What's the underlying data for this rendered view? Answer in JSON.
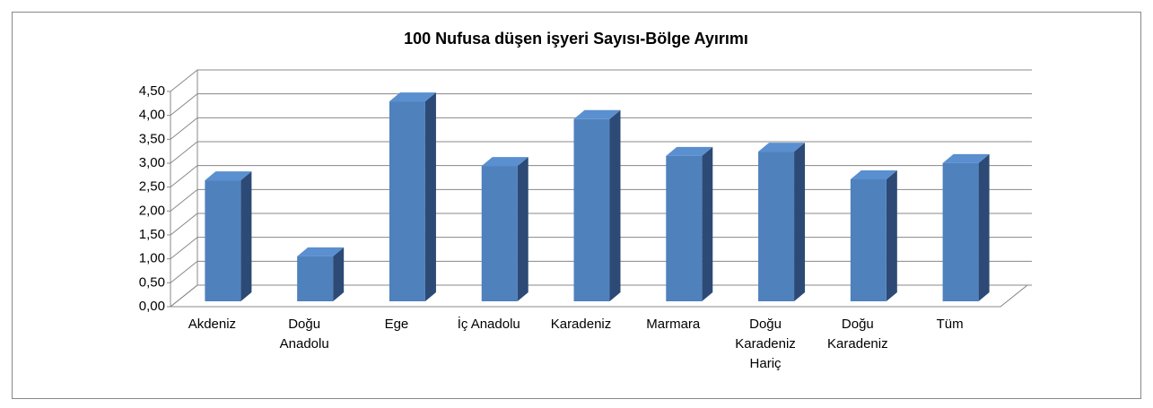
{
  "chart_data": {
    "type": "bar3d",
    "title": "100 Nufusa düşen işyeri Sayısı-Bölge Ayırımı",
    "categories": [
      "Akdeniz",
      "Doğu Anadolu",
      "Ege",
      "İç Anadolu",
      "Karadeniz",
      "Marmara",
      "Doğu Karadeniz Hariç",
      "Doğu Karadeniz",
      "Tüm"
    ],
    "values": [
      2.53,
      0.94,
      4.18,
      2.83,
      3.81,
      3.04,
      3.13,
      2.55,
      2.89
    ],
    "color": "#4f81bd",
    "ylim": [
      0,
      4.5
    ],
    "yticks": [
      {
        "value": 0,
        "label": "0,00"
      },
      {
        "value": 0.5,
        "label": "0,50"
      },
      {
        "value": 1,
        "label": "1,00"
      },
      {
        "value": 1.5,
        "label": "1,50"
      },
      {
        "value": 2,
        "label": "2,00"
      },
      {
        "value": 2.5,
        "label": "2,50"
      },
      {
        "value": 3,
        "label": "3,00"
      },
      {
        "value": 3.5,
        "label": "3,50"
      },
      {
        "value": 4,
        "label": "4,00"
      },
      {
        "value": 4.5,
        "label": "4,50"
      }
    ],
    "grid": true
  }
}
